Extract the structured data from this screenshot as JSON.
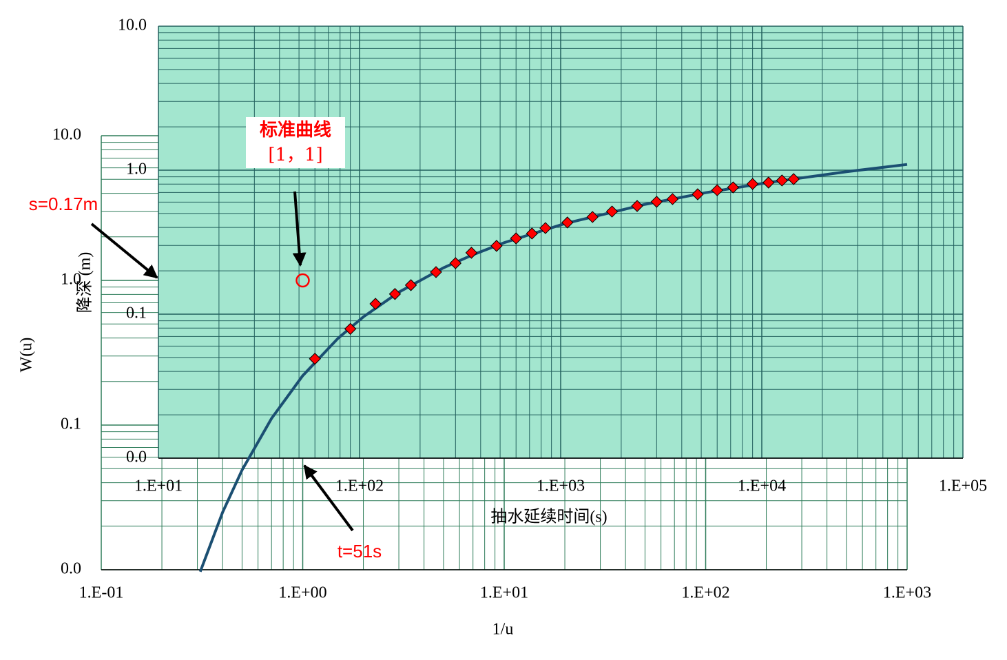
{
  "chart_data": [
    {
      "type": "line",
      "log_x": true,
      "log_y": true,
      "grid": true,
      "grid_color": "#2e7d5a",
      "x_title": "1/u",
      "y_title": "W(u)",
      "xlim": [
        0.1,
        1000
      ],
      "ylim": [
        0.01,
        10
      ],
      "xticks": [
        {
          "value": 0.1,
          "label": "1.E-01"
        },
        {
          "value": 1,
          "label": "1.E+00"
        },
        {
          "value": 10,
          "label": "1.E+01"
        },
        {
          "value": 100,
          "label": "1.E+02"
        },
        {
          "value": 1000,
          "label": "1.E+03"
        }
      ],
      "yticks": [
        {
          "value": 0.01,
          "label": "0.0"
        },
        0.1,
        {
          "value": 1,
          "label": "1.0"
        },
        {
          "value": 10,
          "label": "10.0"
        }
      ],
      "xminor": [
        0.2,
        0.3,
        0.4,
        0.5,
        0.6,
        0.7,
        0.8,
        0.9,
        2,
        3,
        4,
        5,
        6,
        7,
        8,
        9,
        20,
        30,
        40,
        50,
        60,
        70,
        80,
        90,
        200,
        300,
        400,
        500,
        600,
        700,
        800,
        900
      ],
      "yminor": [
        0.02,
        0.03,
        0.04,
        0.05,
        0.06,
        0.07,
        0.08,
        0.09,
        0.2,
        0.3,
        0.4,
        0.5,
        0.6,
        0.7,
        0.8,
        0.9,
        2,
        3,
        4,
        5,
        6,
        7,
        8,
        9
      ],
      "series": [
        {
          "color": "#1b4f72",
          "x": [
            0.31,
            0.4,
            0.5,
            0.7,
            1,
            1.5,
            2,
            3,
            5,
            7,
            10,
            20,
            50,
            100,
            200,
            500,
            1000
          ],
          "values": [
            0.0097,
            0.0249,
            0.0489,
            0.111,
            0.2194,
            0.399,
            0.5598,
            0.829,
            1.2227,
            1.505,
            1.8229,
            2.4679,
            3.3547,
            4.0379,
            4.7261,
            5.6394,
            6.3315
          ]
        }
      ],
      "match_point": {
        "x": 1,
        "y": 1
      }
    },
    {
      "type": "scatter",
      "log_x": true,
      "log_y": true,
      "grid": true,
      "grid_color": "#23605e",
      "background": "#a3e6cf",
      "x_title": "抽水延续时间(s)",
      "y_title": "降深 (m)",
      "xlim": [
        10,
        100000
      ],
      "ylim": [
        0.01,
        10
      ],
      "xticks": [
        {
          "value": 10,
          "label": "1.E+01"
        },
        {
          "value": 100,
          "label": "1.E+02"
        },
        {
          "value": 1000,
          "label": "1.E+03"
        },
        {
          "value": 10000,
          "label": "1.E+04"
        },
        {
          "value": 100000,
          "label": "1.E+05"
        }
      ],
      "yticks": [
        {
          "value": 0.01,
          "label": "0.0"
        },
        0.1,
        {
          "value": 1,
          "label": "1.0"
        },
        {
          "value": 10,
          "label": "10.0"
        }
      ],
      "xminor": [
        20,
        30,
        40,
        50,
        60,
        70,
        80,
        90,
        200,
        300,
        400,
        500,
        600,
        700,
        800,
        900,
        2000,
        3000,
        4000,
        5000,
        6000,
        7000,
        8000,
        9000,
        20000,
        30000,
        40000,
        50000,
        60000,
        70000,
        80000,
        90000
      ],
      "yminor": [
        0.02,
        0.03,
        0.04,
        0.05,
        0.06,
        0.07,
        0.08,
        0.09,
        0.2,
        0.3,
        0.4,
        0.5,
        0.6,
        0.7,
        0.8,
        0.9,
        2,
        3,
        4,
        5,
        6,
        7,
        8,
        9
      ],
      "series": [
        {
          "color": "#ff0000",
          "x": [
            60,
            90,
            120,
            150,
            180,
            240,
            300,
            360,
            480,
            600,
            720,
            840,
            1080,
            1440,
            1800,
            2400,
            3000,
            3600,
            4800,
            6000,
            7200,
            9000,
            10800,
            12600,
            14400
          ],
          "values": [
            0.049,
            0.079,
            0.118,
            0.138,
            0.159,
            0.196,
            0.226,
            0.267,
            0.298,
            0.336,
            0.363,
            0.396,
            0.433,
            0.473,
            0.516,
            0.564,
            0.603,
            0.63,
            0.68,
            0.726,
            0.759,
            0.802,
            0.82,
            0.848,
            0.867
          ]
        }
      ]
    }
  ],
  "annotations": [
    "标准曲线",
    "[1，1]",
    "s=0.17m",
    "t=51s"
  ]
}
